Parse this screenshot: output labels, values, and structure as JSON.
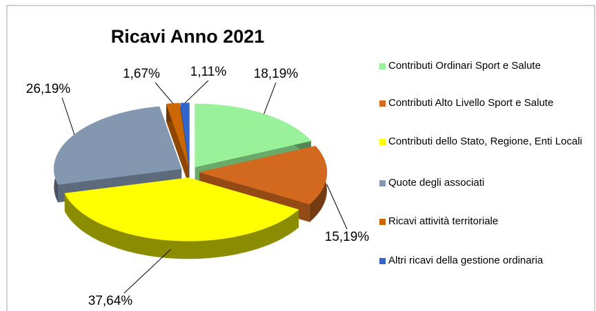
{
  "chart_data": {
    "type": "pie3d",
    "title": "Ricavi Anno 2021",
    "categories": [
      "Contributi Ordinari Sport e Salute",
      "Contributi Alto Livello Sport e Salute",
      "Contributi dello Stato, Regione, Enti Locali",
      "Quote degli associati",
      "Ricavi attività territoriale",
      "Altri ricavi della gestione ordinaria"
    ],
    "values": [
      18.19,
      15.19,
      37.64,
      26.19,
      1.67,
      1.11
    ],
    "value_labels": [
      "18,19%",
      "15,19%",
      "37,64%",
      "26,19%",
      "1,67%",
      "1,11%"
    ],
    "colors": [
      "#99f299",
      "#d2691e",
      "#ffff00",
      "#8497b0",
      "#cc6600",
      "#3366cc"
    ],
    "legend": "right"
  }
}
